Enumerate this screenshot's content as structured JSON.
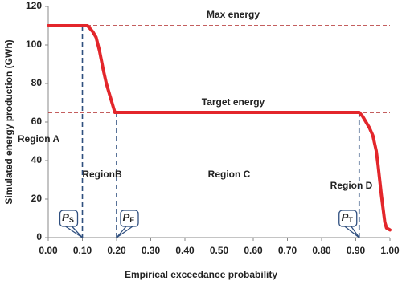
{
  "chart_data": {
    "type": "line",
    "xlabel": "Empirical exceedance probability",
    "ylabel": "Simulated energy production (GWh)",
    "x": [
      0,
      0.05,
      0.1,
      0.115,
      0.12,
      0.13,
      0.14,
      0.15,
      0.16,
      0.17,
      0.18,
      0.19,
      0.195,
      0.2,
      0.5,
      0.91,
      0.92,
      0.93,
      0.94,
      0.95,
      0.96,
      0.965,
      0.97,
      0.975,
      0.98,
      0.985,
      0.99,
      1.0
    ],
    "values": [
      110,
      110,
      110,
      110,
      109,
      107,
      104,
      97,
      88,
      80,
      74,
      68,
      65,
      65,
      65,
      65,
      63,
      60,
      57,
      53,
      45,
      38,
      30,
      22,
      15,
      8,
      5,
      4
    ],
    "color": "#e3262b",
    "xlim": [
      0,
      1
    ],
    "ylim": [
      0,
      120
    ],
    "xticks": [
      {
        "value": 0,
        "label": "0.00"
      },
      {
        "value": 0.1,
        "label": "0.10"
      },
      {
        "value": 0.2,
        "label": "0.20"
      },
      {
        "value": 0.3,
        "label": "0.30"
      },
      {
        "value": 0.4,
        "label": "0.40"
      },
      {
        "value": 0.5,
        "label": "0.50"
      },
      {
        "value": 0.6,
        "label": "0.60"
      },
      {
        "value": 0.7,
        "label": "0.70"
      },
      {
        "value": 0.8,
        "label": "0.80"
      },
      {
        "value": 0.9,
        "label": "0.90"
      },
      {
        "value": 1,
        "label": "1.00"
      }
    ],
    "yticks": [
      0,
      20,
      40,
      60,
      80,
      100,
      120
    ],
    "grid": false,
    "hlines": [
      {
        "value": 110,
        "label": "Max energy",
        "color": "#b02a2a"
      },
      {
        "value": 65,
        "label": "Target energy",
        "color": "#b02a2a"
      }
    ],
    "vlines": [
      {
        "value": 0.1,
        "symbol": "P",
        "subscript": "S"
      },
      {
        "value": 0.2,
        "symbol": "P",
        "subscript": "E"
      },
      {
        "value": 0.91,
        "symbol": "P",
        "subscript": "T"
      }
    ],
    "vline_color": "#2f4f7f",
    "regions": [
      "Region A",
      "RegionB",
      "Region C",
      "Region D"
    ]
  }
}
